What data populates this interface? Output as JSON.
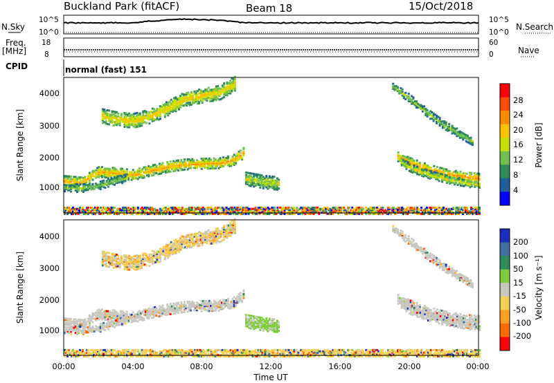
{
  "header": {
    "station": "Buckland Park (fitACF)",
    "beam": "Beam 18",
    "date": "15/Oct/2018"
  },
  "top_panels": {
    "nsky_label": "N.Sky",
    "nsky_ticks": [
      "10^5",
      "10^0"
    ],
    "nsearch_ticks": [
      "10^5",
      "10^0"
    ],
    "nsearch_label": "N.Search",
    "freq_label_1": "Freq.",
    "freq_label_2": "[MHz]",
    "freq_ticks": [
      "18",
      "8"
    ],
    "nave_ticks": [
      "60",
      "0"
    ],
    "nave_label": "Nave",
    "cpid_label": "CPID",
    "cpid_text": "normal (fast) 151"
  },
  "axes": {
    "ylabel": "Slant Range [km]",
    "yticks": [
      "4000",
      "3000",
      "2000",
      "1000"
    ],
    "xticks": [
      "00:00",
      "04:00",
      "08:00",
      "12:00",
      "16:00",
      "20:00",
      "00:00"
    ],
    "xlabel": "Time UT"
  },
  "colorbars": {
    "power": {
      "label": "Power [dB]",
      "ticks": [
        "28",
        "24",
        "20",
        "16",
        "12",
        "8",
        "4"
      ],
      "colors": [
        "#ff0000",
        "#ff4800",
        "#ff8c00",
        "#ffc000",
        "#c8e000",
        "#70c050",
        "#2e8b57",
        "#1f5fa0",
        "#0000ff"
      ]
    },
    "velocity": {
      "label": "Velocity [m s⁻¹]",
      "ticks": [
        "200",
        "100",
        "50",
        "15",
        "-15",
        "-50",
        "-100",
        "-200"
      ],
      "colors": [
        "#1a2fbf",
        "#3f6fa0",
        "#2e8b57",
        "#7ccd3a",
        "#c8c8c0",
        "#f5d050",
        "#ffa020",
        "#ff6a00",
        "#ff0000"
      ]
    }
  },
  "chart_data": {
    "type": "heatmap",
    "x_range_hours": [
      0,
      24
    ],
    "y_range_km": [
      180,
      4500
    ],
    "features": [
      {
        "name": "band-low",
        "t0": 0.0,
        "t1": 10.4,
        "r": [
          [
            0,
            1230
          ],
          [
            1,
            1180
          ],
          [
            2,
            1520
          ],
          [
            3,
            1480
          ],
          [
            4,
            1420
          ],
          [
            5,
            1560
          ],
          [
            6,
            1680
          ],
          [
            7,
            1760
          ],
          [
            8,
            1780
          ],
          [
            9,
            1800
          ],
          [
            9.8,
            1900
          ],
          [
            10.2,
            2050
          ],
          [
            10.4,
            2150
          ]
        ],
        "w": 160,
        "p": 22,
        "v": "gray"
      },
      {
        "name": "band-low-2",
        "t0": 0.0,
        "t1": 3.6,
        "r": [
          [
            0,
            1020
          ],
          [
            1,
            1000
          ],
          [
            2,
            1080
          ],
          [
            3,
            1250
          ],
          [
            3.6,
            1320
          ]
        ],
        "w": 120,
        "p": 13,
        "v": "gray"
      },
      {
        "name": "band-high",
        "t0": 2.2,
        "t1": 9.9,
        "r": [
          [
            2.2,
            3300
          ],
          [
            3,
            3200
          ],
          [
            4,
            3150
          ],
          [
            5,
            3300
          ],
          [
            6,
            3550
          ],
          [
            7,
            3850
          ],
          [
            8,
            3950
          ],
          [
            9,
            4050
          ],
          [
            9.9,
            4350
          ]
        ],
        "w": 220,
        "p": 20,
        "v": "yellow"
      },
      {
        "name": "evening-1",
        "t0": 19.3,
        "t1": 24.0,
        "r": [
          [
            19.3,
            2000
          ],
          [
            20,
            1820
          ],
          [
            21,
            1620
          ],
          [
            22,
            1470
          ],
          [
            23,
            1380
          ],
          [
            24,
            1320
          ]
        ],
        "w": 140,
        "p": 24,
        "v": "gray"
      },
      {
        "name": "evening-2",
        "t0": 19.5,
        "t1": 24.0,
        "r": [
          [
            19.5,
            1850
          ],
          [
            20,
            1650
          ],
          [
            21,
            1450
          ],
          [
            22,
            1300
          ],
          [
            23,
            1200
          ],
          [
            24,
            1100
          ]
        ],
        "w": 120,
        "p": 17,
        "v": "gray"
      },
      {
        "name": "evening-high",
        "t0": 19.0,
        "t1": 23.6,
        "r": [
          [
            19.0,
            4250
          ],
          [
            20,
            3850
          ],
          [
            21,
            3400
          ],
          [
            22,
            3000
          ],
          [
            23.6,
            2500
          ]
        ],
        "w": 120,
        "p": 13,
        "v": "gray"
      },
      {
        "name": "midday-patch",
        "t0": 10.5,
        "t1": 12.4,
        "r": [
          [
            10.5,
            1300
          ],
          [
            11.5,
            1200
          ],
          [
            12.4,
            1150
          ]
        ],
        "w": 200,
        "p": 16,
        "v": "green"
      }
    ]
  }
}
